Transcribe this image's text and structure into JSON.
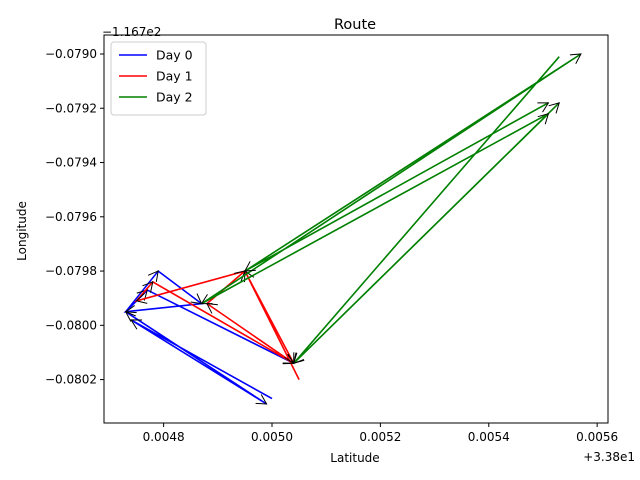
{
  "chart_data": {
    "type": "line",
    "title": "Route",
    "xlabel": "Latitude",
    "ylabel": "Longitude",
    "x_offset_label": "+3.38e1",
    "y_offset_label": "−1.167e2",
    "xlim": [
      0.00469,
      0.00562
    ],
    "ylim": [
      -0.08036,
      -0.07893
    ],
    "xticks": [
      0.0048,
      0.005,
      0.0052,
      0.0054,
      0.0056
    ],
    "xtick_labels": [
      "0.0048",
      "0.0050",
      "0.0052",
      "0.0054",
      "0.0056"
    ],
    "yticks": [
      -0.079,
      -0.0792,
      -0.0794,
      -0.0796,
      -0.0798,
      -0.08,
      -0.0802
    ],
    "ytick_labels": [
      "−0.0790",
      "−0.0792",
      "−0.0794",
      "−0.0796",
      "−0.0798",
      "−0.0800",
      "−0.0802"
    ],
    "legend_position": "top-left",
    "series": [
      {
        "name": "Day 0",
        "color": "#0000ff",
        "points": [
          [
            0.005,
            -0.08027
          ],
          [
            0.00474,
            -0.07998
          ],
          [
            0.00499,
            -0.08029
          ],
          [
            0.00473,
            -0.07995
          ],
          [
            0.00479,
            -0.0798
          ],
          [
            0.00487,
            -0.07992
          ],
          [
            0.00473,
            -0.07995
          ],
          [
            0.00477,
            -0.07987
          ],
          [
            0.00504,
            -0.08014
          ]
        ]
      },
      {
        "name": "Day 1",
        "color": "#ff0000",
        "points": [
          [
            0.00505,
            -0.0802
          ],
          [
            0.00495,
            -0.0798
          ],
          [
            0.00475,
            -0.07991
          ],
          [
            0.00478,
            -0.07984
          ],
          [
            0.00504,
            -0.08014
          ],
          [
            0.00488,
            -0.07992
          ],
          [
            0.00495,
            -0.0798
          ],
          [
            0.00504,
            -0.08014
          ]
        ]
      },
      {
        "name": "Day 2",
        "color": "#008000",
        "points": [
          [
            0.00553,
            -0.07901
          ],
          [
            0.00504,
            -0.08014
          ],
          [
            0.00553,
            -0.07918
          ],
          [
            0.00504,
            -0.08014
          ],
          [
            0.00551,
            -0.07922
          ],
          [
            0.00487,
            -0.07992
          ],
          [
            0.00557,
            -0.079
          ],
          [
            0.00495,
            -0.0798
          ],
          [
            0.00551,
            -0.07918
          ]
        ]
      }
    ]
  }
}
